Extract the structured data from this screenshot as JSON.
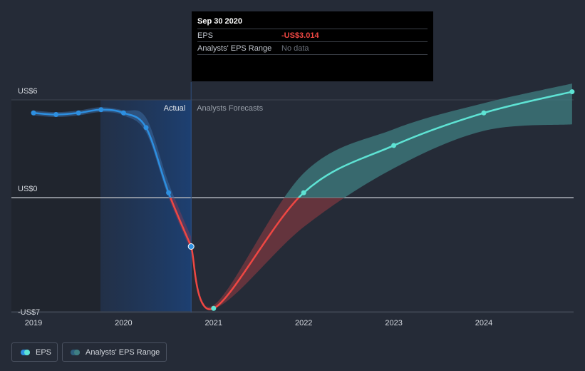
{
  "chart_data": {
    "type": "line",
    "title": "EPS",
    "y_ticks": [
      {
        "value": 6,
        "label": "US$6"
      },
      {
        "value": 0,
        "label": "US$0"
      },
      {
        "value": -7,
        "label": "-US$7"
      }
    ],
    "x_ticks": [
      "2019",
      "2020",
      "2021",
      "2022",
      "2023",
      "2024"
    ],
    "ylim": [
      -8.4,
      7.2
    ],
    "xlim": [
      2018.78,
      2024.98
    ],
    "divider_label_actual": "Actual",
    "divider_label_forecast": "Analysts Forecasts",
    "actual_series": {
      "name": "EPS (Actual)",
      "x": [
        2019.0,
        2019.25,
        2019.5,
        2019.75,
        2020.0,
        2020.25,
        2020.5,
        2020.75
      ],
      "values": [
        5.2,
        5.1,
        5.2,
        5.4,
        5.2,
        4.3,
        0.3,
        -3.0
      ]
    },
    "forecast_series": {
      "name": "EPS (Forecast)",
      "x": [
        2020.75,
        2021.0,
        2022.0,
        2023.0,
        2024.0,
        2025.0
      ],
      "values": [
        -3.0,
        -6.8,
        0.3,
        3.2,
        5.2,
        6.5
      ]
    },
    "forecast_range": {
      "name": "Analysts' EPS Range",
      "x": [
        2020.75,
        2021.0,
        2022.0,
        2023.0,
        2024.0,
        2025.0
      ],
      "high": [
        -3.0,
        -6.6,
        1.5,
        4.2,
        5.8,
        7.0
      ],
      "low": [
        -3.0,
        -6.8,
        -1.8,
        1.8,
        4.1,
        4.5
      ]
    },
    "tooltip": {
      "date": "Sep 30 2020",
      "rows": [
        {
          "label": "EPS",
          "value": "-US$3.014"
        },
        {
          "label": "Analysts' EPS Range",
          "value": "No data"
        }
      ]
    },
    "legend": [
      "EPS",
      "Analysts' EPS Range"
    ]
  },
  "colors": {
    "background": "#252b37",
    "actual_line": "#2d8fe0",
    "forecast_positive": "#5ee3d4",
    "forecast_negative": "#ef4743",
    "range_positive": "#3f7f82",
    "range_negative": "#7a3840",
    "actual_region": "#1a2d4a",
    "grid": "#3d4451",
    "zero_line": "#a9aeb6",
    "tick_text": "#d5d9df"
  }
}
